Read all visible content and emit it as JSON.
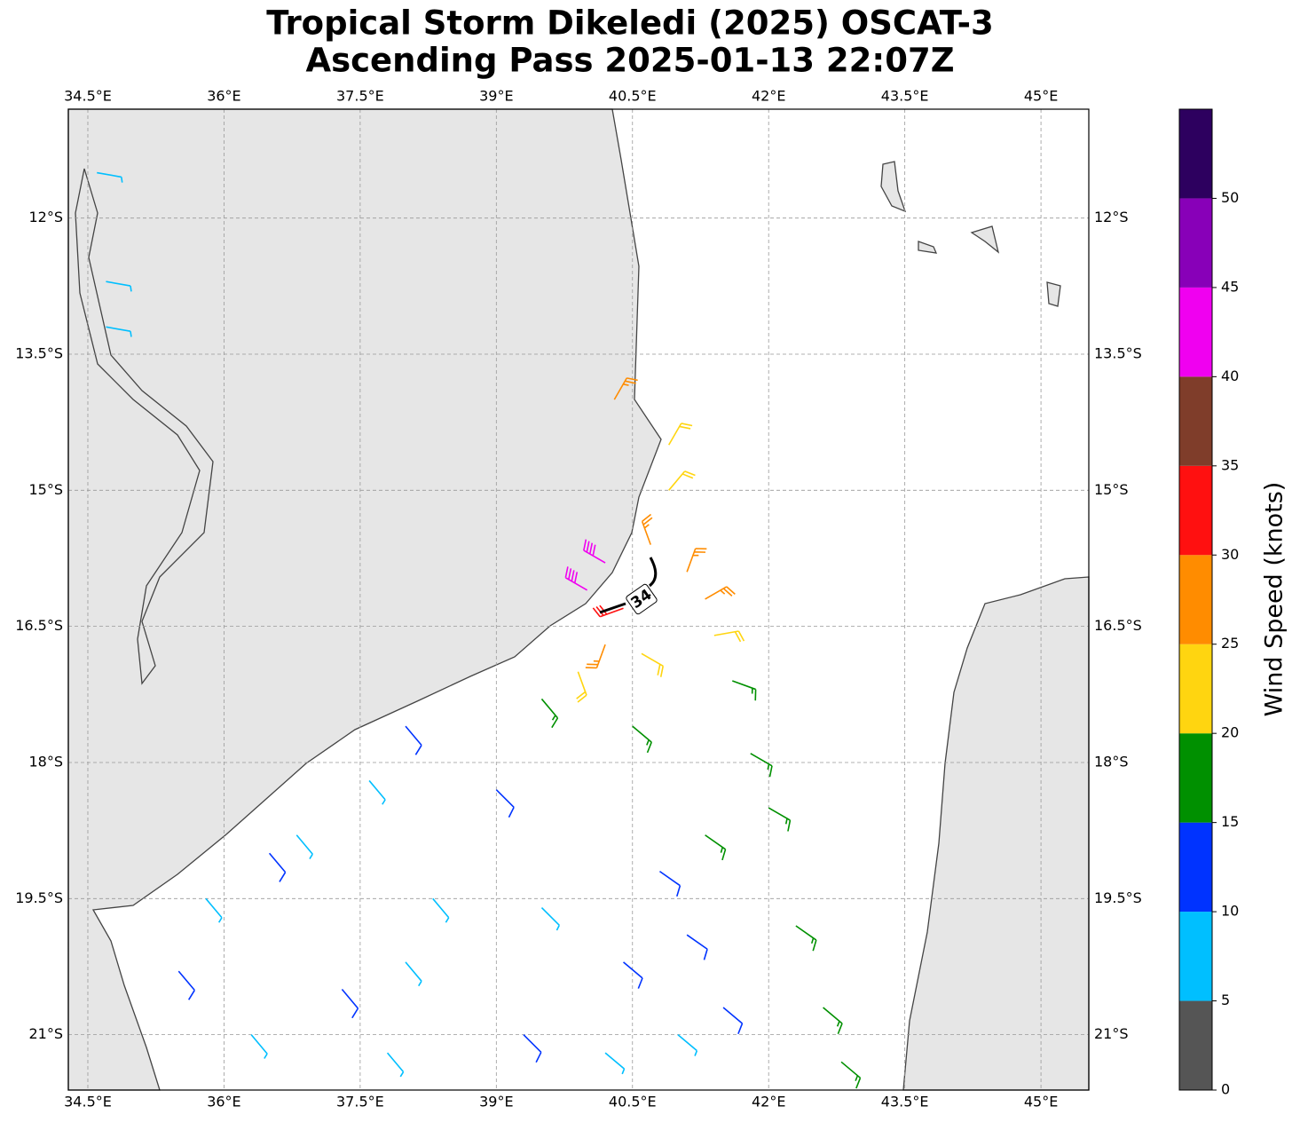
{
  "chart_data": {
    "type": "wind-barb-map",
    "title": [
      "Tropical Storm Dikeledi (2025) OSCAT-3",
      "Ascending Pass 2025-01-13 22:07Z"
    ],
    "xlim": [
      34.285,
      45.527
    ],
    "ylim": [
      -21.61,
      -10.8
    ],
    "xticks": [
      {
        "value": 34.5,
        "label": "34.5°E"
      },
      {
        "value": 36,
        "label": "36°E"
      },
      {
        "value": 37.5,
        "label": "37.5°E"
      },
      {
        "value": 39,
        "label": "39°E"
      },
      {
        "value": 40.5,
        "label": "40.5°E"
      },
      {
        "value": 42,
        "label": "42°E"
      },
      {
        "value": 43.5,
        "label": "43.5°E"
      },
      {
        "value": 45,
        "label": "45°E"
      }
    ],
    "yticks": [
      {
        "value": -12,
        "label": "12°S"
      },
      {
        "value": -13.5,
        "label": "13.5°S"
      },
      {
        "value": -15,
        "label": "15°S"
      },
      {
        "value": -16.5,
        "label": "16.5°S"
      },
      {
        "value": -18,
        "label": "18°S"
      },
      {
        "value": -19.5,
        "label": "19.5°S"
      },
      {
        "value": -21,
        "label": "21°S"
      }
    ],
    "grid": true,
    "colorbar": {
      "label": "Wind Speed (knots)",
      "bounds": [
        0,
        5,
        10,
        15,
        20,
        25,
        30,
        35,
        40,
        45,
        50,
        55
      ],
      "colors": [
        "#555555",
        "#00bfff",
        "#0033ff",
        "#009000",
        "#ffd510",
        "#ff8c00",
        "#ff1010",
        "#7f3d2a",
        "#f000f0",
        "#8800b8",
        "#2d005f"
      ],
      "ticks": [
        0,
        5,
        10,
        15,
        20,
        25,
        30,
        35,
        40,
        45,
        50
      ]
    },
    "contour": {
      "value": 34,
      "lon": 40.6,
      "lat": -16.2
    },
    "barbs": [
      {
        "lon": 40.2,
        "lat": -15.8,
        "speed": 42,
        "dir": 300
      },
      {
        "lon": 40.0,
        "lat": -16.1,
        "speed": 44,
        "dir": 300
      },
      {
        "lon": 40.4,
        "lat": -16.3,
        "speed": 32,
        "dir": 250
      },
      {
        "lon": 40.7,
        "lat": -15.6,
        "speed": 27,
        "dir": 340
      },
      {
        "lon": 41.1,
        "lat": -15.9,
        "speed": 27,
        "dir": 20
      },
      {
        "lon": 41.3,
        "lat": -16.2,
        "speed": 27,
        "dir": 60
      },
      {
        "lon": 40.2,
        "lat": -16.7,
        "speed": 27,
        "dir": 200
      },
      {
        "lon": 40.3,
        "lat": -14.0,
        "speed": 28,
        "dir": 30
      },
      {
        "lon": 40.9,
        "lat": -14.5,
        "speed": 23,
        "dir": 30
      },
      {
        "lon": 40.9,
        "lat": -15.0,
        "speed": 22,
        "dir": 40
      },
      {
        "lon": 41.4,
        "lat": -16.6,
        "speed": 22,
        "dir": 80
      },
      {
        "lon": 40.6,
        "lat": -16.8,
        "speed": 22,
        "dir": 120
      },
      {
        "lon": 39.9,
        "lat": -17.0,
        "speed": 22,
        "dir": 160
      },
      {
        "lon": 41.6,
        "lat": -17.1,
        "speed": 17,
        "dir": 110
      },
      {
        "lon": 41.8,
        "lat": -17.9,
        "speed": 17,
        "dir": 120
      },
      {
        "lon": 40.5,
        "lat": -17.6,
        "speed": 17,
        "dir": 130
      },
      {
        "lon": 39.5,
        "lat": -17.3,
        "speed": 17,
        "dir": 140
      },
      {
        "lon": 42.0,
        "lat": -18.5,
        "speed": 17,
        "dir": 120
      },
      {
        "lon": 42.3,
        "lat": -19.8,
        "speed": 17,
        "dir": 125
      },
      {
        "lon": 42.6,
        "lat": -20.7,
        "speed": 17,
        "dir": 130
      },
      {
        "lon": 42.8,
        "lat": -21.3,
        "speed": 17,
        "dir": 130
      },
      {
        "lon": 41.3,
        "lat": -18.8,
        "speed": 17,
        "dir": 125
      },
      {
        "lon": 39.0,
        "lat": -18.3,
        "speed": 12,
        "dir": 135
      },
      {
        "lon": 40.8,
        "lat": -19.2,
        "speed": 12,
        "dir": 125
      },
      {
        "lon": 41.1,
        "lat": -19.9,
        "speed": 12,
        "dir": 125
      },
      {
        "lon": 38.0,
        "lat": -17.6,
        "speed": 12,
        "dir": 140
      },
      {
        "lon": 36.5,
        "lat": -19.0,
        "speed": 12,
        "dir": 140
      },
      {
        "lon": 35.5,
        "lat": -20.3,
        "speed": 12,
        "dir": 140
      },
      {
        "lon": 37.3,
        "lat": -20.5,
        "speed": 12,
        "dir": 140
      },
      {
        "lon": 39.3,
        "lat": -21.0,
        "speed": 12,
        "dir": 135
      },
      {
        "lon": 40.4,
        "lat": -20.2,
        "speed": 12,
        "dir": 130
      },
      {
        "lon": 41.5,
        "lat": -20.7,
        "speed": 12,
        "dir": 130
      },
      {
        "lon": 37.6,
        "lat": -18.2,
        "speed": 8,
        "dir": 140
      },
      {
        "lon": 36.8,
        "lat": -18.8,
        "speed": 8,
        "dir": 140
      },
      {
        "lon": 38.3,
        "lat": -19.5,
        "speed": 8,
        "dir": 140
      },
      {
        "lon": 35.8,
        "lat": -19.5,
        "speed": 8,
        "dir": 140
      },
      {
        "lon": 39.5,
        "lat": -19.6,
        "speed": 8,
        "dir": 135
      },
      {
        "lon": 36.3,
        "lat": -21.0,
        "speed": 8,
        "dir": 140
      },
      {
        "lon": 40.2,
        "lat": -21.2,
        "speed": 8,
        "dir": 130
      },
      {
        "lon": 41.0,
        "lat": -21.0,
        "speed": 8,
        "dir": 130
      },
      {
        "lon": 37.8,
        "lat": -21.2,
        "speed": 8,
        "dir": 140
      },
      {
        "lon": 38.0,
        "lat": -20.2,
        "speed": 8,
        "dir": 140
      },
      {
        "lon": 34.6,
        "lat": -11.5,
        "speed": 7,
        "dir": 100
      },
      {
        "lon": 34.7,
        "lat": -12.7,
        "speed": 7,
        "dir": 100
      },
      {
        "lon": 34.7,
        "lat": -13.2,
        "speed": 7,
        "dir": 100
      }
    ]
  }
}
